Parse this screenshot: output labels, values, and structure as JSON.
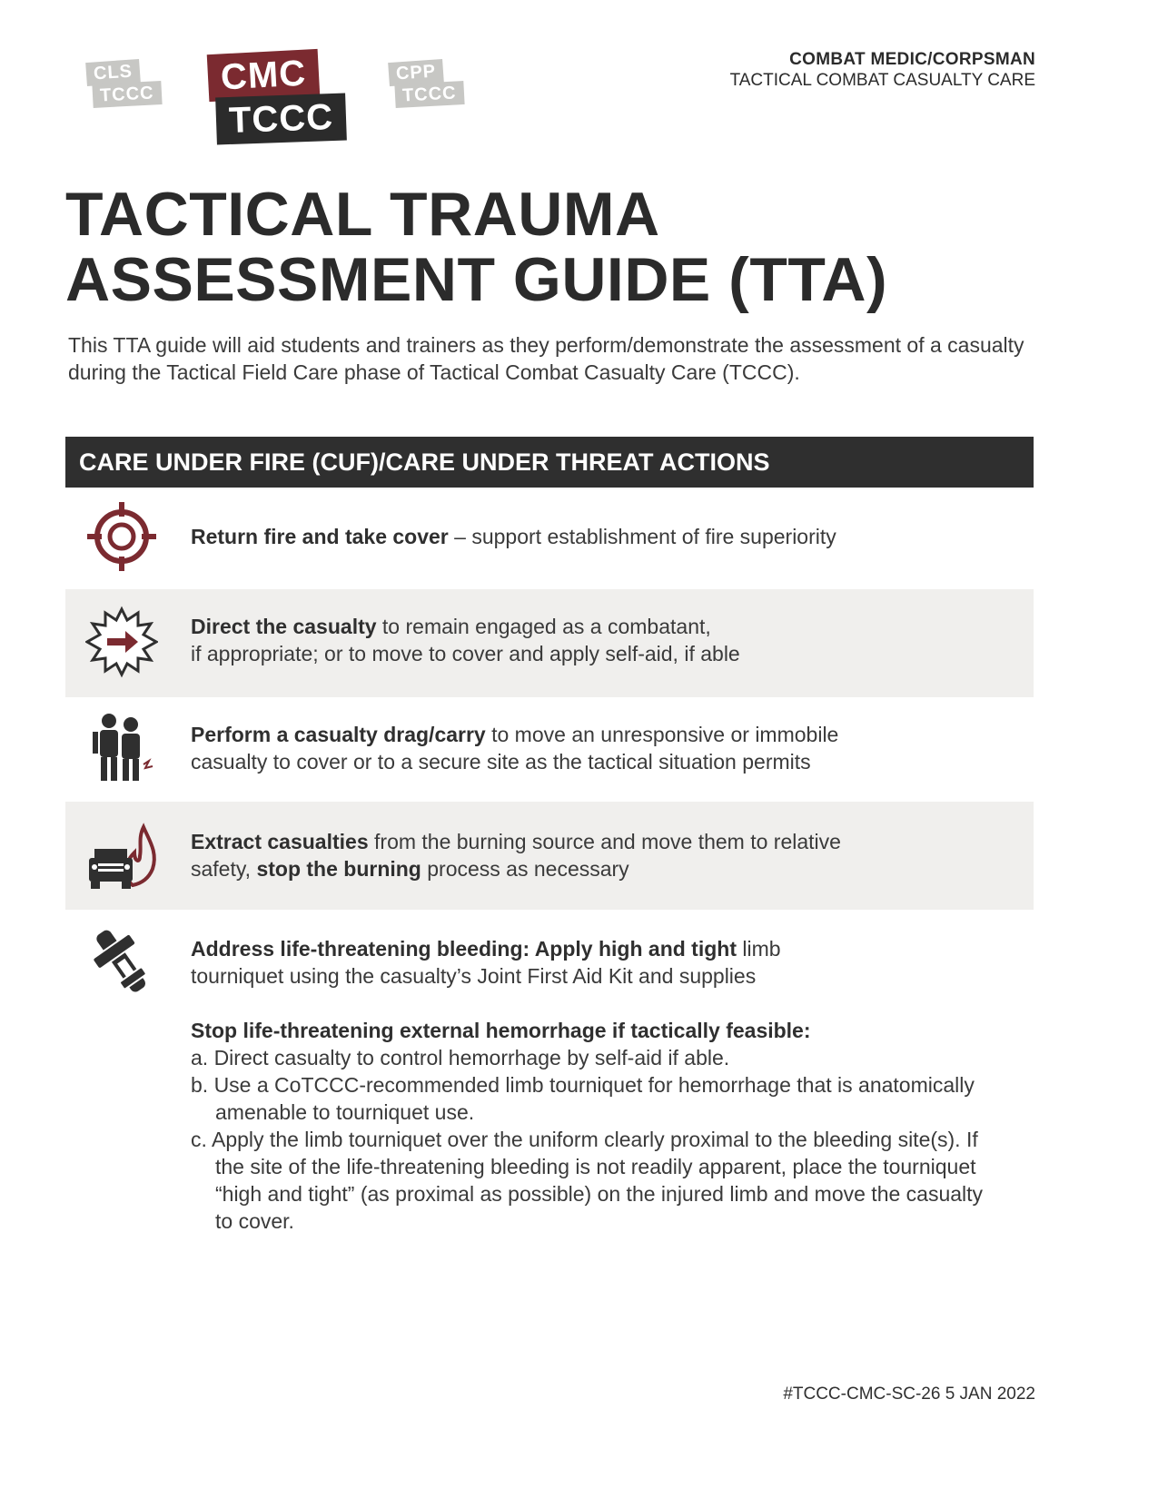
{
  "logos": {
    "left": {
      "line1": "CLS",
      "line2": "TCCC"
    },
    "center": {
      "line1": "CMC",
      "line2": "TCCC"
    },
    "right": {
      "line1": "CPP",
      "line2": "TCCC"
    }
  },
  "header": {
    "line1": "COMBAT MEDIC/CORPSMAN",
    "line2": "TACTICAL COMBAT CASUALTY CARE"
  },
  "title": {
    "line1": "TACTICAL TRAUMA",
    "line2": "ASSESSMENT GUIDE (TTA)"
  },
  "intro": "This TTA guide will aid students and trainers as they perform/demonstrate the assessment of a casualty during the Tactical Field Care phase of Tactical Combat Casualty Care (TCCC).",
  "section": {
    "title": "CARE UNDER FIRE (CUF)/CARE UNDER THREAT ACTIONS"
  },
  "colors": {
    "accent": "#7b2a30",
    "dark": "#2f2f2f",
    "shade": "#f0efed"
  },
  "items": [
    {
      "icon": "crosshair-icon",
      "bold": "Return fire and take cover",
      "rest": " – support establishment of fire superiority"
    },
    {
      "icon": "direct-arrow-burst-icon",
      "bold": "Direct the casualty",
      "rest": " to remain engaged as a combatant,",
      "line2": "if appropriate; or to move to cover and apply self-aid, if able"
    },
    {
      "icon": "casualty-carry-icon",
      "bold": "Perform a casualty drag/carry",
      "rest": " to move an unresponsive or immobile",
      "line2": "casualty to cover or to a secure site as the tactical situation permits"
    },
    {
      "icon": "burning-vehicle-icon",
      "bold": "Extract casualties",
      "rest": " from the burning source and move them to relative",
      "line2a": "safety, ",
      "line2bold": "stop the burning",
      "line2b": " process as necessary"
    },
    {
      "icon": "tourniquet-icon",
      "bold": "Address life-threatening bleeding: Apply high and tight",
      "rest": " limb",
      "line2": "tourniquet using the casualty’s Joint First Aid Kit and supplies",
      "subheading": "Stop life-threatening external hemorrhage if tactically feasible:",
      "list": [
        "a. Direct casualty to control hemorrhage by self-aid if able.",
        "b. Use a CoTCCC-recommended limb tourniquet for hemorrhage that is anatomically amenable to tourniquet use.",
        "c. Apply the limb tourniquet over the uniform clearly proximal to the bleeding site(s). If the site of the life-threatening bleeding is not readily apparent, place the tourniquet “high and tight” (as proximal as possible) on the injured limb and move the casualty to cover."
      ]
    }
  ],
  "footer": "#TCCC-CMC-SC-26  5 JAN 2022"
}
